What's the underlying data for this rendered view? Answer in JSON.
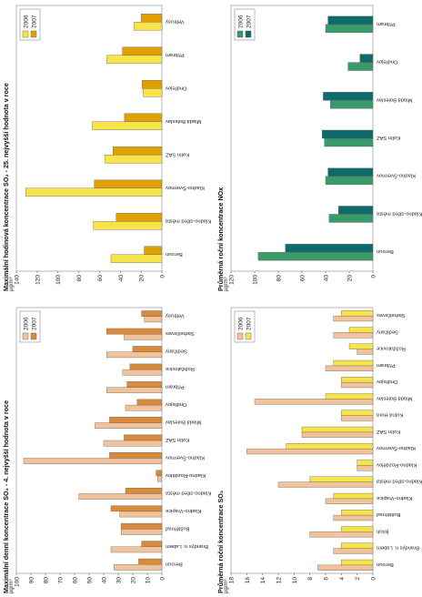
{
  "colors": {
    "so2_2006": "#f2c29a",
    "so2_2006_edge": "#c8885a",
    "so2_2007": "#d98a3a",
    "so2_2007_edge": "#a35e1c",
    "hourly_2006": "#f7e34a",
    "hourly_2006_edge": "#b8a20c",
    "hourly_2007": "#e0a100",
    "hourly_2007_edge": "#9a6e00",
    "annual_2006": "#f2c29a",
    "annual_2007": "#f7e34a",
    "nox_2006": "#3a9a6a",
    "nox_2007": "#0f6b6b"
  },
  "chart_data": [
    {
      "id": "so2_daily",
      "type": "bar",
      "title": "Maximální denní koncentrace SO₂ - 4. nejvyšší hodnota v roce",
      "ylabel": "μg/m³",
      "ylim": [
        0,
        100
      ],
      "yticks": [
        0,
        10,
        20,
        30,
        40,
        50,
        60,
        70,
        80,
        90,
        100
      ],
      "legend": [
        "2006",
        "2007"
      ],
      "categories": [
        "Beroun",
        "Brandýs n. Labem",
        "Buštěhrad",
        "Kladno-Vrapice",
        "Kladno-střed města",
        "Kladno-Rozdělov",
        "Kladno-Švermov",
        "Kolín SAZ",
        "Mladá Boleslav",
        "Ondřejov",
        "Příbram",
        "Rožďalovice",
        "Sedlčany",
        "Stehelčeves",
        "Veltrusy"
      ],
      "series": [
        {
          "name": "2006",
          "values": [
            33,
            35,
            28,
            29,
            57,
            3,
            95,
            40,
            46,
            25,
            38,
            27,
            38,
            26,
            12
          ]
        },
        {
          "name": "2007",
          "values": [
            16,
            14,
            28,
            35,
            25,
            4,
            36,
            26,
            36,
            17,
            24,
            22,
            20,
            38,
            14
          ]
        }
      ]
    },
    {
      "id": "so2_hourly",
      "type": "bar",
      "title": "Maximální hodinová koncentrace SO₂ - 25. nejvyšší hodnota v roce",
      "ylabel": "μg/m³",
      "ylim": [
        0,
        140
      ],
      "yticks": [
        0,
        20,
        40,
        60,
        80,
        100,
        120,
        140
      ],
      "legend": [
        "2006",
        "2007"
      ],
      "categories": [
        "Beroun",
        "Kladno-střed města",
        "Kladno-Švermov",
        "Kolín SAZ",
        "Mladá Boleslav",
        "Ondřejov",
        "Příbram",
        "Veltrusy"
      ],
      "series": [
        {
          "name": "2006",
          "values": [
            49,
            66,
            131,
            55,
            67,
            18,
            53,
            27
          ]
        },
        {
          "name": "2007",
          "values": [
            17,
            44,
            65,
            47,
            36,
            19,
            38,
            20
          ]
        }
      ]
    },
    {
      "id": "so2_annual",
      "type": "bar",
      "title": "Průměrná roční koncentrace SO₂",
      "ylabel": "μg/m³",
      "ylim": [
        0,
        18
      ],
      "yticks": [
        0,
        2,
        4,
        6,
        8,
        10,
        12,
        14,
        16,
        18
      ],
      "legend": [
        "2006",
        "2007"
      ],
      "categories": [
        "Beroun",
        "Brandýs n. Labem",
        "Brloh",
        "Buštěhrad",
        "Kladno-Vrapice",
        "Kladno-střed města",
        "Kladno-Rozdělov",
        "Kladno-Švermov",
        "Kolín SAZ",
        "Kutná Hora",
        "Mladá Boleslav",
        "Ondřejov",
        "Příbram",
        "Rožďalovice",
        "Sedlčany",
        "Stehelčeves"
      ],
      "series": [
        {
          "name": "2006",
          "values": [
            7,
            5,
            8,
            5,
            6,
            12,
            2,
            16,
            9,
            4,
            15,
            4,
            6,
            2,
            5,
            5
          ]
        },
        {
          "name": "2007",
          "values": [
            4,
            4,
            4,
            4,
            5,
            8,
            2,
            11,
            9,
            4,
            6,
            4,
            5,
            3,
            3,
            4
          ]
        }
      ]
    },
    {
      "id": "nox_annual",
      "type": "bar",
      "title": "Průměrná roční koncentrace NOx",
      "ylabel": "μg/m³",
      "ylim": [
        0,
        120
      ],
      "yticks": [
        0,
        20,
        40,
        60,
        80,
        100,
        120
      ],
      "legend": [
        "2006",
        "2007"
      ],
      "categories": [
        "Beroun",
        "Kladno-střed města",
        "Kladno-Švermov",
        "Kolín SAZ",
        "Mladá Boleslav",
        "Ondřejov",
        "Příbram"
      ],
      "series": [
        {
          "name": "2006",
          "values": [
            97,
            37,
            40,
            41,
            36,
            21,
            40
          ]
        },
        {
          "name": "2007",
          "values": [
            74,
            29,
            38,
            43,
            42,
            11,
            38
          ]
        }
      ]
    }
  ]
}
